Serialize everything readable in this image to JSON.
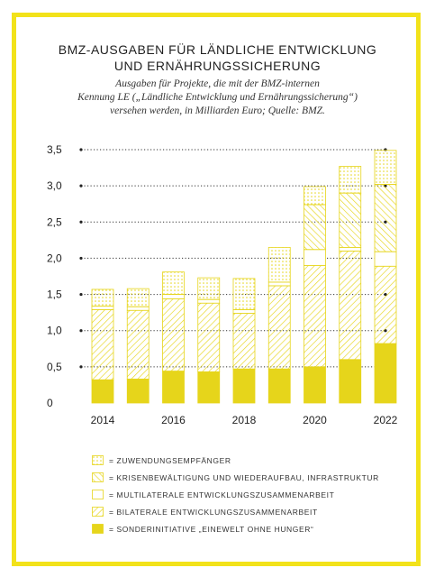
{
  "title_lines": [
    "BMZ-AUSGABEN FÜR LÄNDLICHE ENTWICKLUNG",
    "UND ERNÄHRUNGSSICHERUNG"
  ],
  "subtitle_lines": [
    "Ausgaben für Projekte, die mit der BMZ-internen",
    "Kennung LE („Ländliche Entwicklung und Ernährungssicherung“)",
    "versehen werden, in Milliarden Euro; Quelle: BMZ."
  ],
  "colors": {
    "accent": "#f2e21a",
    "fill": "#e6d51b",
    "text": "#222222"
  },
  "chart_data": {
    "type": "bar",
    "stacked": true,
    "categories": [
      "2014",
      "2015",
      "2016",
      "2017",
      "2018",
      "2019",
      "2020",
      "2021",
      "2022"
    ],
    "x_tick_labels": [
      "2014",
      "2016",
      "2018",
      "2020",
      "2022"
    ],
    "y_tick_labels": [
      "0",
      "0,5",
      "1,0",
      "1,5",
      "2,0",
      "2,5",
      "3,0",
      "3,5"
    ],
    "ylim": [
      0,
      3.5
    ],
    "grid": "horizontal dotted lines",
    "legend_position": "bottom",
    "series": [
      {
        "name": "SONDERINITIATIVE „EINEWELT OHNE HUNGER“",
        "pattern": "solid",
        "values": [
          0.32,
          0.33,
          0.44,
          0.43,
          0.47,
          0.47,
          0.5,
          0.6,
          0.82
        ]
      },
      {
        "name": "BILATERALE ENTWICKLUNGSZUSAMMENARBEIT",
        "pattern": "hatch",
        "values": [
          0.97,
          0.95,
          1.0,
          0.95,
          0.77,
          1.15,
          1.4,
          1.5,
          1.07
        ]
      },
      {
        "name": "MULTILATERALE ENTWICKLUNGSZUSAMMENARBEIT",
        "pattern": "empty",
        "values": [
          0.05,
          0.05,
          0.06,
          0.05,
          0.05,
          0.05,
          0.22,
          0.05,
          0.2
        ]
      },
      {
        "name": "KRISENBEWÄLTIGUNG UND WIEDERAUFBAU, INFRASTRUKTUR",
        "pattern": "hatch-reverse",
        "values": [
          0.0,
          0.0,
          0.0,
          0.0,
          0.0,
          0.0,
          0.62,
          0.75,
          0.93
        ]
      },
      {
        "name": "ZUWENDUNGSEMPFÄNGER",
        "pattern": "dots",
        "values": [
          0.23,
          0.25,
          0.31,
          0.3,
          0.43,
          0.48,
          0.25,
          0.37,
          0.47
        ]
      }
    ]
  },
  "legend_order": [
    4,
    3,
    2,
    1,
    0
  ]
}
